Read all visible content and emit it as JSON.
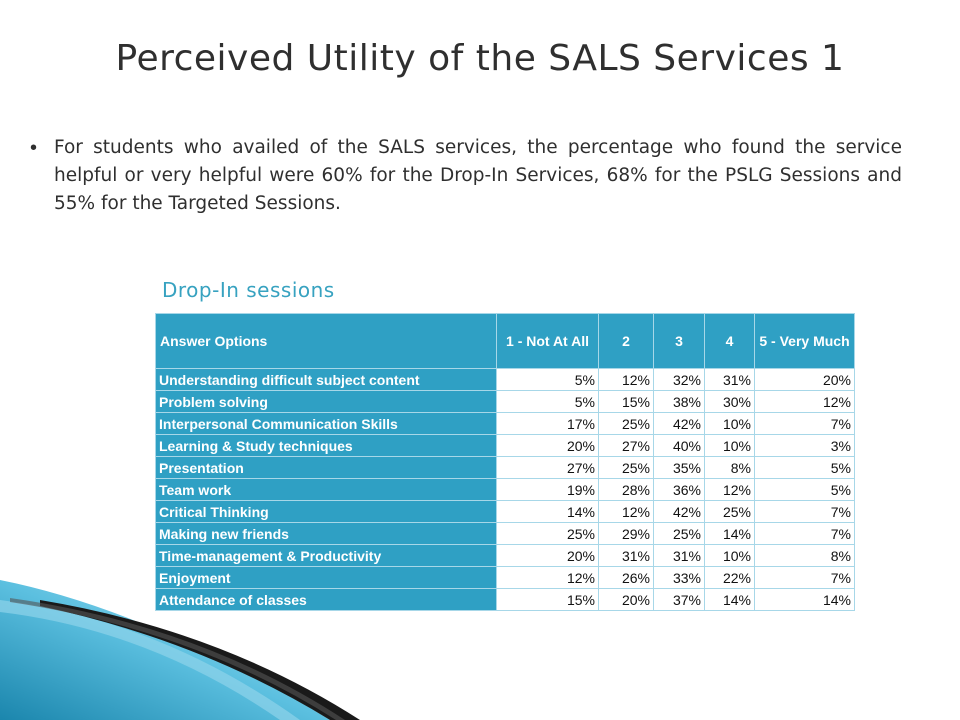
{
  "slide": {
    "title": "Perceived Utility of the SALS Services 1",
    "bullet": "For students who availed of the SALS services, the percentage who found the service helpful or very helpful were 60% for the Drop-In Services, 68% for the PSLG Sessions and 55% for the Targeted Sessions.",
    "subtitle": "Drop-In sessions"
  },
  "table": {
    "headers": [
      "Answer Options",
      "1 - Not At All",
      "2",
      "3",
      "4",
      "5 - Very Much"
    ],
    "rows": [
      {
        "label": "Understanding difficult subject content",
        "values": [
          "5%",
          "12%",
          "32%",
          "31%",
          "20%"
        ]
      },
      {
        "label": "Problem solving",
        "values": [
          "5%",
          "15%",
          "38%",
          "30%",
          "12%"
        ]
      },
      {
        "label": "Interpersonal Communication Skills",
        "values": [
          "17%",
          "25%",
          "42%",
          "10%",
          "7%"
        ]
      },
      {
        "label": "Learning & Study techniques",
        "values": [
          "20%",
          "27%",
          "40%",
          "10%",
          "3%"
        ]
      },
      {
        "label": "Presentation",
        "values": [
          "27%",
          "25%",
          "35%",
          "8%",
          "5%"
        ]
      },
      {
        "label": "Team work",
        "values": [
          "19%",
          "28%",
          "36%",
          "12%",
          "5%"
        ]
      },
      {
        "label": "Critical Thinking",
        "values": [
          "14%",
          "12%",
          "42%",
          "25%",
          "7%"
        ]
      },
      {
        "label": "Making new friends",
        "values": [
          "25%",
          "29%",
          "25%",
          "14%",
          "7%"
        ]
      },
      {
        "label": "Time-management & Productivity",
        "values": [
          "20%",
          "31%",
          "31%",
          "10%",
          "8%"
        ]
      },
      {
        "label": "Enjoyment",
        "values": [
          "12%",
          "26%",
          "33%",
          "22%",
          "7%"
        ]
      },
      {
        "label": "Attendance of classes",
        "values": [
          "15%",
          "20%",
          "37%",
          "14%",
          "14%"
        ]
      }
    ]
  },
  "colors": {
    "accent": "#2fa0c4",
    "subtitle": "#37a2c0",
    "title": "#2f2f2f"
  }
}
